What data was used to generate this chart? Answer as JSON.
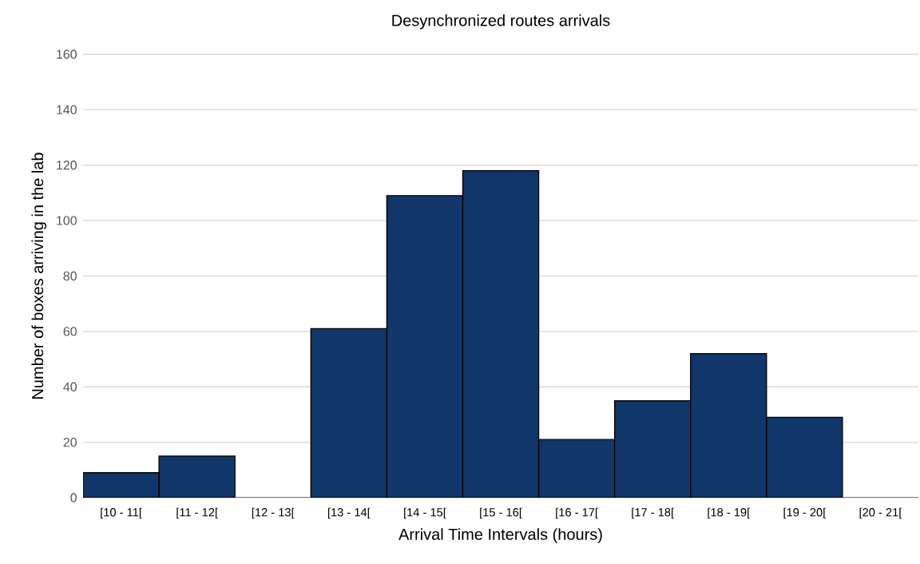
{
  "chart_data": {
    "type": "bar",
    "title": "Desynchronized routes arrivals",
    "xlabel": "Arrival Time Intervals (hours)",
    "ylabel": "Number of boxes arriving in the lab",
    "categories": [
      "[10 - 11[",
      "[11 - 12[",
      "[12 - 13[",
      "[13 - 14[",
      "[14 - 15[",
      "[15 - 16[",
      "[16 - 17[",
      "[17 - 18[",
      "[18 - 19[",
      "[19 - 20[",
      "[20 - 21["
    ],
    "values": [
      9,
      15,
      0,
      61,
      109,
      118,
      21,
      35,
      52,
      29,
      0
    ],
    "color": "#10366a",
    "ylim": [
      0,
      160
    ],
    "yticks": [
      0,
      20,
      40,
      60,
      80,
      100,
      120,
      140,
      160
    ],
    "grid": "y"
  }
}
